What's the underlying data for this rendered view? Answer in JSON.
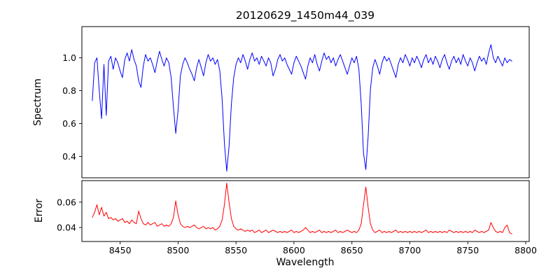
{
  "chart_data": {
    "type": "line",
    "title": "20120629_1450m44_039",
    "xlabel": "Wavelength",
    "xlim": [
      8417,
      8803
    ],
    "x_start": 8426,
    "x_step": 2,
    "grid": false,
    "legend": "none",
    "xticks": [
      {
        "v": 8450,
        "label": "8450"
      },
      {
        "v": 8500,
        "label": "8500"
      },
      {
        "v": 8550,
        "label": "8550"
      },
      {
        "v": 8600,
        "label": "8600"
      },
      {
        "v": 8650,
        "label": "8650"
      },
      {
        "v": 8700,
        "label": "8700"
      },
      {
        "v": 8750,
        "label": "8750"
      },
      {
        "v": 8800,
        "label": "8800"
      }
    ],
    "panels": [
      {
        "name": "spectrum",
        "ylabel": "Spectrum",
        "color": "#0000ff",
        "ylim": [
          0.27,
          1.19
        ],
        "yticks": [
          {
            "v": 0.4,
            "label": "0.4"
          },
          {
            "v": 0.6,
            "label": "0.6"
          },
          {
            "v": 0.8,
            "label": "0.8"
          },
          {
            "v": 1.0,
            "label": "1.0"
          }
        ],
        "absorption_line_centers": [
          8433,
          8438,
          8467,
          8498,
          8542,
          8662
        ],
        "values": [
          0.74,
          0.97,
          1.0,
          0.8,
          0.63,
          0.96,
          0.65,
          0.98,
          1.01,
          0.93,
          1.0,
          0.97,
          0.92,
          0.88,
          0.99,
          1.03,
          0.98,
          1.05,
          0.99,
          0.95,
          0.86,
          0.82,
          0.95,
          1.02,
          0.98,
          1.0,
          0.96,
          0.91,
          0.98,
          1.04,
          0.99,
          0.95,
          1.0,
          0.97,
          0.88,
          0.7,
          0.54,
          0.68,
          0.89,
          0.96,
          1.0,
          0.97,
          0.93,
          0.9,
          0.86,
          0.94,
          0.99,
          0.94,
          0.89,
          0.97,
          1.02,
          0.98,
          1.0,
          0.96,
          0.99,
          0.92,
          0.75,
          0.48,
          0.31,
          0.46,
          0.72,
          0.88,
          0.96,
          1.0,
          0.97,
          1.02,
          0.98,
          0.93,
          0.99,
          1.03,
          0.98,
          1.0,
          0.96,
          1.01,
          0.98,
          0.95,
          1.0,
          0.97,
          0.89,
          0.93,
          0.99,
          1.02,
          0.98,
          1.0,
          0.96,
          0.93,
          0.9,
          0.97,
          1.01,
          0.98,
          0.95,
          0.91,
          0.87,
          0.95,
          1.0,
          0.97,
          1.02,
          0.96,
          0.92,
          0.98,
          1.03,
          0.99,
          1.01,
          0.97,
          1.0,
          0.95,
          0.99,
          1.02,
          0.98,
          0.94,
          0.9,
          0.95,
          1.0,
          0.97,
          1.01,
          0.93,
          0.72,
          0.42,
          0.32,
          0.52,
          0.81,
          0.94,
          0.99,
          0.95,
          0.9,
          0.97,
          1.01,
          0.98,
          1.0,
          0.96,
          0.92,
          0.88,
          0.96,
          1.0,
          0.97,
          1.02,
          0.99,
          0.95,
          1.0,
          0.97,
          1.01,
          0.98,
          0.94,
          0.99,
          1.02,
          0.97,
          1.0,
          0.96,
          1.01,
          0.98,
          0.94,
          0.99,
          1.02,
          0.97,
          0.93,
          0.98,
          1.01,
          0.97,
          1.0,
          0.96,
          1.02,
          0.98,
          0.95,
          1.0,
          0.97,
          0.92,
          0.97,
          1.01,
          0.98,
          1.0,
          0.96,
          1.03,
          1.08,
          1.0,
          0.97,
          1.01,
          0.98,
          0.95,
          1.0,
          0.97,
          0.99,
          0.98
        ]
      },
      {
        "name": "error",
        "ylabel": "Error",
        "color": "#ff0000",
        "ylim": [
          0.029,
          0.077
        ],
        "yticks": [
          {
            "v": 0.04,
            "label": "0.04"
          },
          {
            "v": 0.06,
            "label": "0.06"
          }
        ],
        "values": [
          0.048,
          0.052,
          0.058,
          0.05,
          0.056,
          0.049,
          0.052,
          0.047,
          0.048,
          0.046,
          0.047,
          0.045,
          0.046,
          0.047,
          0.044,
          0.045,
          0.043,
          0.046,
          0.044,
          0.043,
          0.053,
          0.047,
          0.043,
          0.042,
          0.044,
          0.042,
          0.043,
          0.044,
          0.041,
          0.042,
          0.043,
          0.041,
          0.042,
          0.041,
          0.043,
          0.048,
          0.061,
          0.05,
          0.043,
          0.041,
          0.04,
          0.041,
          0.04,
          0.041,
          0.042,
          0.04,
          0.039,
          0.04,
          0.041,
          0.039,
          0.04,
          0.039,
          0.04,
          0.038,
          0.039,
          0.041,
          0.046,
          0.058,
          0.075,
          0.06,
          0.047,
          0.041,
          0.039,
          0.038,
          0.039,
          0.038,
          0.037,
          0.038,
          0.037,
          0.038,
          0.036,
          0.037,
          0.038,
          0.036,
          0.037,
          0.038,
          0.036,
          0.037,
          0.038,
          0.037,
          0.036,
          0.037,
          0.036,
          0.037,
          0.036,
          0.037,
          0.038,
          0.036,
          0.037,
          0.036,
          0.037,
          0.038,
          0.04,
          0.038,
          0.036,
          0.037,
          0.036,
          0.037,
          0.038,
          0.036,
          0.037,
          0.036,
          0.037,
          0.036,
          0.037,
          0.038,
          0.036,
          0.037,
          0.036,
          0.037,
          0.038,
          0.037,
          0.036,
          0.037,
          0.036,
          0.038,
          0.043,
          0.058,
          0.072,
          0.056,
          0.043,
          0.038,
          0.036,
          0.037,
          0.038,
          0.036,
          0.037,
          0.036,
          0.037,
          0.036,
          0.037,
          0.038,
          0.036,
          0.037,
          0.036,
          0.037,
          0.036,
          0.037,
          0.036,
          0.037,
          0.036,
          0.037,
          0.036,
          0.037,
          0.038,
          0.036,
          0.037,
          0.036,
          0.037,
          0.036,
          0.037,
          0.036,
          0.037,
          0.036,
          0.038,
          0.037,
          0.036,
          0.037,
          0.036,
          0.037,
          0.036,
          0.037,
          0.036,
          0.037,
          0.036,
          0.038,
          0.037,
          0.036,
          0.037,
          0.036,
          0.037,
          0.038,
          0.044,
          0.04,
          0.037,
          0.036,
          0.037,
          0.036,
          0.04,
          0.042,
          0.036,
          0.035
        ]
      }
    ]
  }
}
